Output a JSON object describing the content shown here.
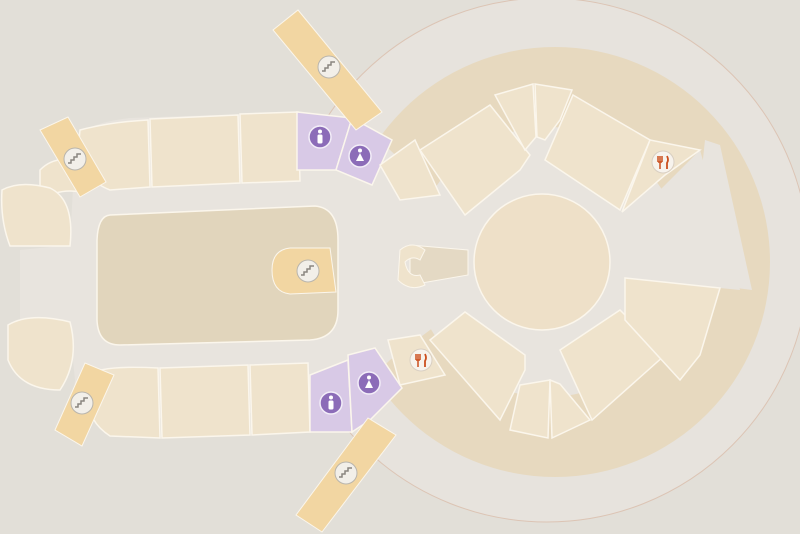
{
  "map": {
    "colors": {
      "background": "#e2dfd8",
      "corridor": "#e8e4de",
      "room": "#efe3cc",
      "stair": "#f2d6a2",
      "restroom": "#d8c9e6",
      "restroom_icon": "#8c6cb8",
      "dining_icon": "#cc4f1e"
    },
    "pois": [
      {
        "icon": "stairs-icon",
        "kind": "stairs"
      },
      {
        "icon": "stairs-icon",
        "kind": "stairs"
      },
      {
        "icon": "stairs-icon",
        "kind": "stairs"
      },
      {
        "icon": "stairs-icon",
        "kind": "stairs"
      },
      {
        "icon": "stairs-icon",
        "kind": "stairs"
      },
      {
        "icon": "male-restroom-icon",
        "kind": "restroom"
      },
      {
        "icon": "female-restroom-icon",
        "kind": "restroom"
      },
      {
        "icon": "male-restroom-icon",
        "kind": "restroom"
      },
      {
        "icon": "female-restroom-icon",
        "kind": "restroom"
      },
      {
        "icon": "restaurant-icon",
        "kind": "dining"
      },
      {
        "icon": "restaurant-icon",
        "kind": "dining"
      }
    ]
  }
}
